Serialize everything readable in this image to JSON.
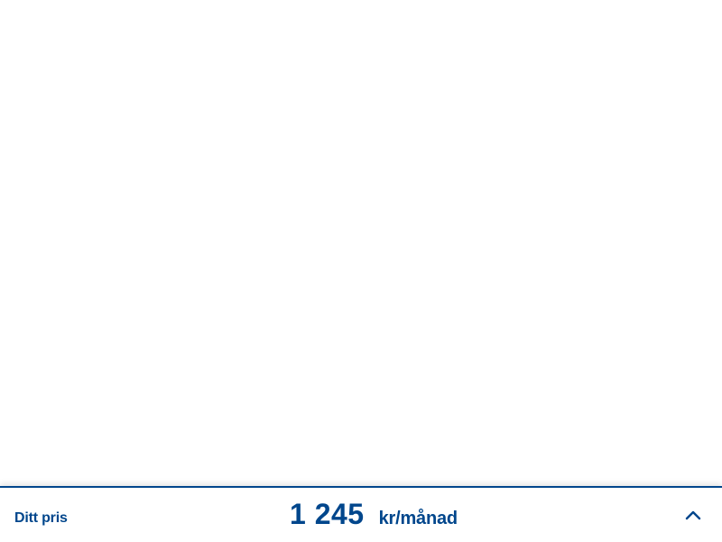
{
  "price_bar": {
    "label": "Ditt pris",
    "amount": "1 245",
    "unit": "kr/månad",
    "toggle_icon": "chevron-up-icon"
  },
  "colors": {
    "accent": "#00468c",
    "background": "#ffffff"
  }
}
